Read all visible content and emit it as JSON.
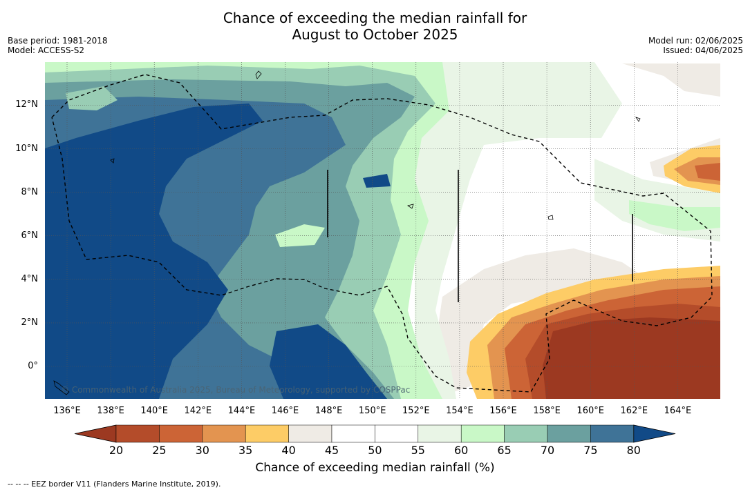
{
  "title_line1": "Chance of exceeding the median rainfall for",
  "title_line2": "August to October 2025",
  "base_period": "Base period: 1981-2018",
  "model": "Model: ACCESS-S2",
  "model_run": "Model run: 02/06/2025",
  "issued": "Issued: 04/06/2025",
  "lat_ticks": [
    "12°N",
    "10°N",
    "8°N",
    "6°N",
    "4°N",
    "2°N",
    "0°"
  ],
  "lon_ticks": [
    "136°E",
    "138°E",
    "140°E",
    "142°E",
    "144°E",
    "146°E",
    "148°E",
    "150°E",
    "152°E",
    "154°E",
    "156°E",
    "158°E",
    "160°E",
    "162°E",
    "164°E"
  ],
  "copyright": "© Commonwealth of Australia 2025, Bureau of Meteorology, supported by COSPPac",
  "colorbar": {
    "labels": [
      "20",
      "25",
      "30",
      "35",
      "40",
      "45",
      "50",
      "55",
      "60",
      "65",
      "70",
      "75",
      "80"
    ],
    "colors": [
      "#9c3921",
      "#b44c2a",
      "#cc6436",
      "#e39450",
      "#fdcc66",
      "#efebe5",
      "#ffffff",
      "#ffffff",
      "#e9f5e6",
      "#c9f8c7",
      "#99cdb4",
      "#6ba09f",
      "#3f7397",
      "#114a87"
    ],
    "title": "Chance of exceeding median rainfall (%)"
  },
  "footnote": "--  --  -- EEZ border V11 (Flanders Marine Institute, 2019)."
}
